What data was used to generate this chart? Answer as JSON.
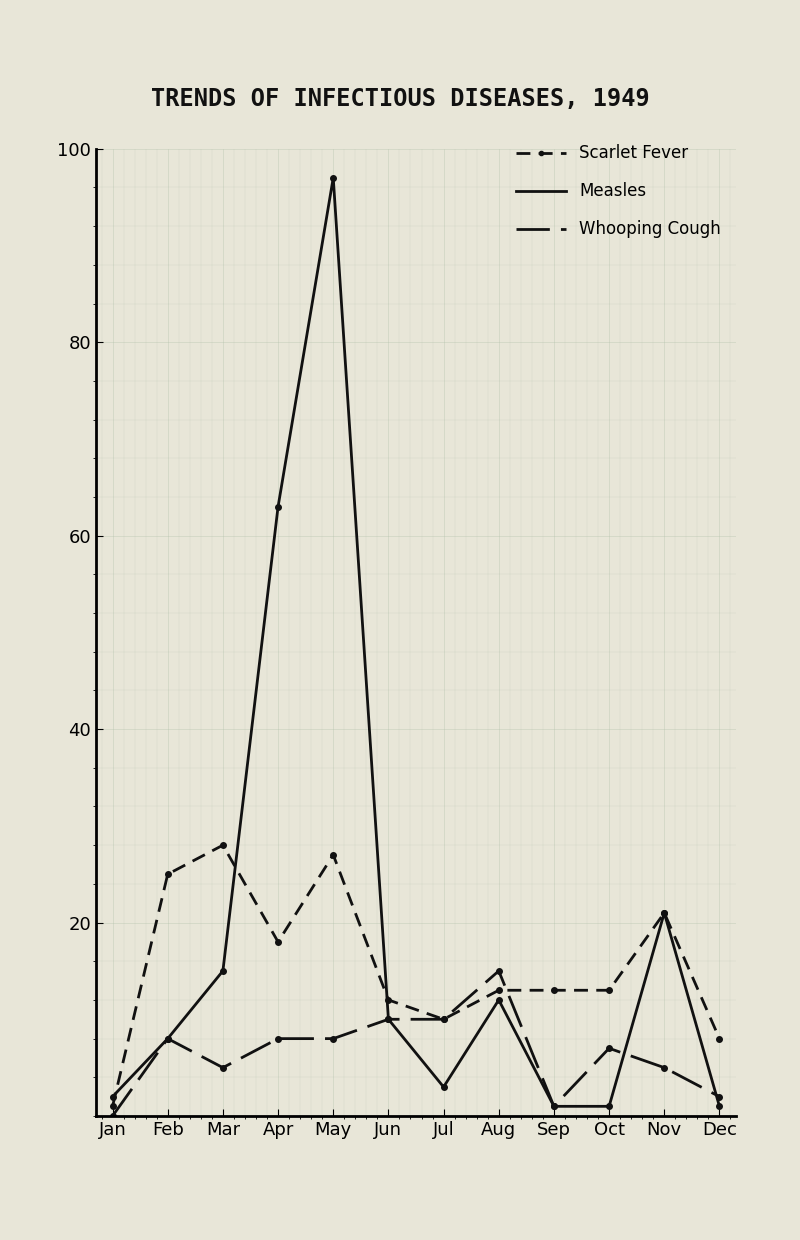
{
  "title": "TRENDS OF INFECTIOUS DISEASES, 1949",
  "months": [
    "Jan",
    "Feb",
    "Mar",
    "Apr",
    "May",
    "Jun",
    "Jul",
    "Aug",
    "Sep",
    "Oct",
    "Nov",
    "Dec"
  ],
  "measles": [
    2,
    8,
    15,
    63,
    97,
    10,
    3,
    12,
    1,
    1,
    21,
    1
  ],
  "scarlet_fever": [
    1,
    25,
    28,
    18,
    27,
    12,
    10,
    13,
    13,
    13,
    21,
    8
  ],
  "whooping_cough": [
    0,
    8,
    5,
    8,
    8,
    10,
    10,
    15,
    1,
    7,
    5,
    2
  ],
  "ylim": [
    0,
    100
  ],
  "yticks": [
    20,
    40,
    60,
    80,
    100
  ],
  "background_color": "#e8e6d8",
  "line_color": "#111111",
  "title_fontsize": 17,
  "legend_labels": [
    "Scarlet Fever",
    "Measles",
    "Whooping Cough"
  ],
  "legend_linestyles": [
    "--",
    "-",
    "-."
  ]
}
